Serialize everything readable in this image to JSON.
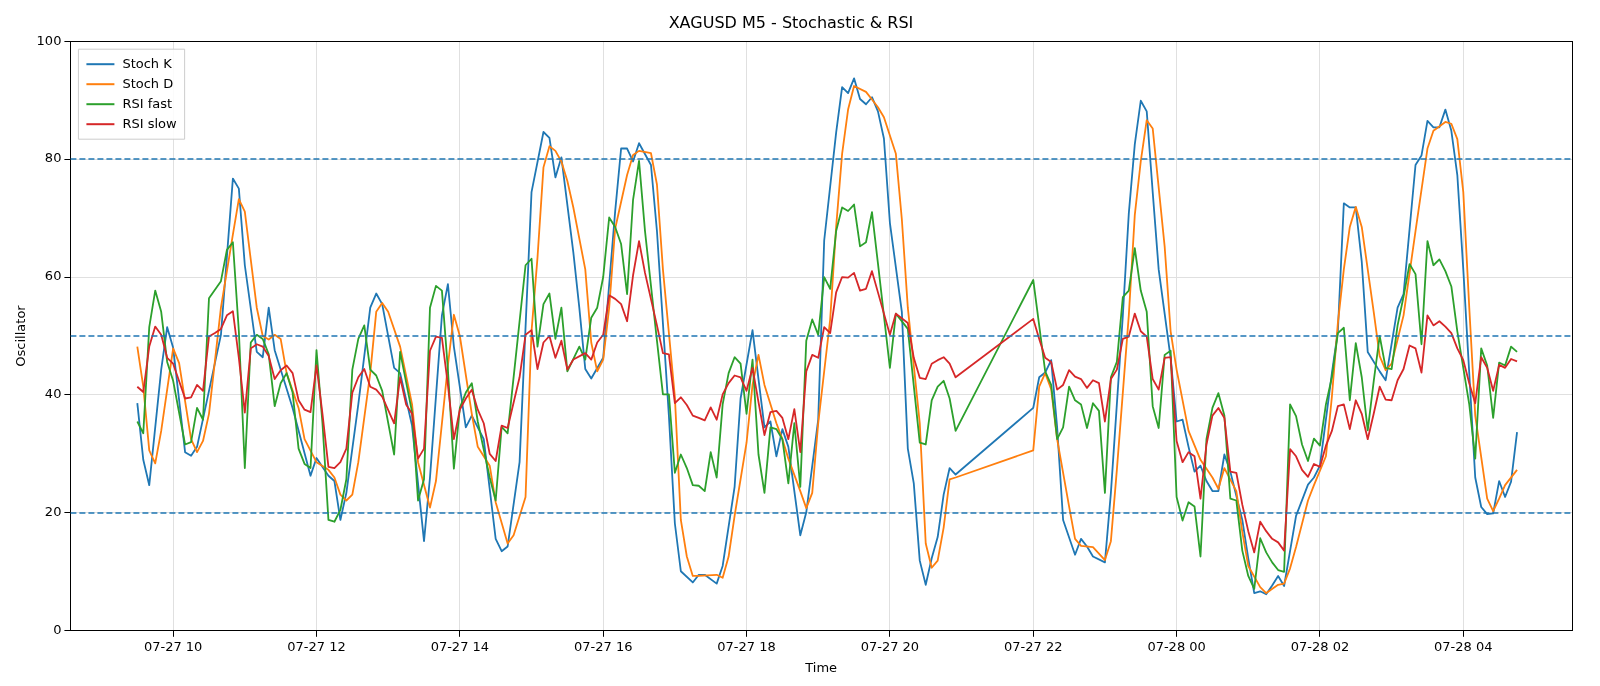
{
  "chart_data": {
    "type": "line",
    "title": "XAGUSD M5 - Stochastic & RSI",
    "xlabel": "Time",
    "ylabel": "Oscillator",
    "xlim": [
      "--07-27T08:34",
      "--07-28T05:31"
    ],
    "xticks": [
      {
        "value": "--07-27T10:00",
        "label": "07-27 10"
      },
      {
        "value": "--07-27T12:00",
        "label": "07-27 12"
      },
      {
        "value": "--07-27T14:00",
        "label": "07-27 14"
      },
      {
        "value": "--07-27T16:00",
        "label": "07-27 16"
      },
      {
        "value": "--07-27T18:00",
        "label": "07-27 18"
      },
      {
        "value": "--07-27T20:00",
        "label": "07-27 20"
      },
      {
        "value": "--07-27T22:00",
        "label": "07-27 22"
      },
      {
        "value": "--07-28T00:00",
        "label": "07-28 00"
      },
      {
        "value": "--07-28T02:00",
        "label": "07-28 02"
      },
      {
        "value": "--07-28T04:00",
        "label": "07-28 04"
      }
    ],
    "ylim": [
      0,
      100
    ],
    "yticks": [
      0,
      20,
      40,
      60,
      80,
      100
    ],
    "grid": true,
    "legend": "top left",
    "line_style": "solid",
    "ref_lines": [
      {
        "axis": "y",
        "value": 80,
        "color": "#1f77b3",
        "line_style": "dashed"
      },
      {
        "axis": "y",
        "value": 50,
        "color": "#1f76b4",
        "line_style": "dashed"
      },
      {
        "axis": "y",
        "value": 20,
        "color": "#1e77b4",
        "line_style": "dashed"
      }
    ],
    "series": [
      {
        "name": "Stoch K",
        "color": "#1f77b4",
        "x": [
          "--07-27T09:30",
          "--07-27T09:35",
          "--07-27T09:40",
          "--07-27T09:50",
          "--07-27T09:55",
          "--07-27T10:00",
          "--07-27T10:10",
          "--07-27T10:15",
          "--07-27T10:20",
          "--07-27T10:40",
          "--07-27T10:50",
          "--07-27T10:55",
          "--07-27T11:00",
          "--07-27T11:10",
          "--07-27T11:15",
          "--07-27T11:20",
          "--07-27T11:25",
          "--07-27T11:40",
          "--07-27T11:55",
          "--07-27T12:00",
          "--07-27T12:10",
          "--07-27T12:15",
          "--07-27T12:20",
          "--07-27T12:25",
          "--07-27T12:35",
          "--07-27T12:45",
          "--07-27T12:50",
          "--07-27T12:55",
          "--07-27T13:05",
          "--07-27T13:10",
          "--07-27T13:20",
          "--07-27T13:30",
          "--07-27T13:35",
          "--07-27T13:45",
          "--07-27T13:50",
          "--07-27T13:55",
          "--07-27T14:05",
          "--07-27T14:10",
          "--07-27T14:20",
          "--07-27T14:30",
          "--07-27T14:35",
          "--07-27T14:40",
          "--07-27T14:50",
          "--07-27T15:00",
          "--07-27T15:10",
          "--07-27T15:15",
          "--07-27T15:20",
          "--07-27T15:25",
          "--07-27T15:35",
          "--07-27T15:40",
          "--07-27T15:45",
          "--07-27T15:50",
          "--07-27T16:00",
          "--07-27T16:10",
          "--07-27T16:15",
          "--07-27T16:20",
          "--07-27T16:25",
          "--07-27T16:30",
          "--07-27T16:40",
          "--07-27T16:45",
          "--07-27T16:55",
          "--07-27T17:00",
          "--07-27T17:05",
          "--07-27T17:15",
          "--07-27T17:20",
          "--07-27T17:25",
          "--07-27T17:35",
          "--07-27T17:40",
          "--07-27T17:50",
          "--07-27T17:55",
          "--07-27T18:05",
          "--07-27T18:10",
          "--07-27T18:15",
          "--07-27T18:20",
          "--07-27T18:25",
          "--07-27T18:30",
          "--07-27T18:35",
          "--07-27T18:45",
          "--07-27T18:50",
          "--07-27T19:00",
          "--07-27T19:05",
          "--07-27T19:15",
          "--07-27T19:20",
          "--07-27T19:25",
          "--07-27T19:30",
          "--07-27T19:35",
          "--07-27T19:40",
          "--07-27T19:45",
          "--07-27T19:50",
          "--07-27T19:55",
          "--07-27T20:00",
          "--07-27T20:10",
          "--07-27T20:15",
          "--07-27T20:20",
          "--07-27T20:25",
          "--07-27T20:30",
          "--07-27T20:35",
          "--07-27T20:40",
          "--07-27T20:45",
          "--07-27T20:50",
          "--07-27T20:55",
          "--07-27T22:00",
          "--07-27T22:05",
          "--07-27T22:10",
          "--07-27T22:15",
          "--07-27T22:20",
          "--07-27T22:25",
          "--07-27T22:35",
          "--07-27T22:40",
          "--07-27T22:45",
          "--07-27T22:50",
          "--07-27T23:00",
          "--07-27T23:05",
          "--07-27T23:15",
          "--07-27T23:20",
          "--07-27T23:25",
          "--07-27T23:30",
          "--07-27T23:35",
          "--07-27T23:40",
          "--07-27T23:45",
          "--07-27T23:55",
          "--07-28T00:00",
          "--07-28T00:05",
          "--07-28T00:10",
          "--07-28T00:15",
          "--07-28T00:20",
          "--07-28T00:25",
          "--07-28T00:30",
          "--07-28T00:35",
          "--07-28T00:40",
          "--07-28T00:45",
          "--07-28T00:55",
          "--07-28T01:00",
          "--07-28T01:05",
          "--07-28T01:10",
          "--07-28T01:15",
          "--07-28T01:20",
          "--07-28T01:25",
          "--07-28T01:30",
          "--07-28T01:40",
          "--07-28T01:50",
          "--07-28T01:55",
          "--07-28T02:00",
          "--07-28T02:10",
          "--07-28T02:15",
          "--07-28T02:20",
          "--07-28T02:25",
          "--07-28T02:30",
          "--07-28T02:35",
          "--07-28T02:40",
          "--07-28T02:50",
          "--07-28T02:55",
          "--07-28T03:05",
          "--07-28T03:10",
          "--07-28T03:20",
          "--07-28T03:25",
          "--07-28T03:30",
          "--07-28T03:35",
          "--07-28T03:40",
          "--07-28T03:45",
          "--07-28T03:50",
          "--07-28T03:55",
          "--07-28T04:00",
          "--07-28T04:10",
          "--07-28T04:15",
          "--07-28T04:20",
          "--07-28T04:25",
          "--07-28T04:30",
          "--07-28T04:35",
          "--07-28T04:40",
          "--07-28T04:45"
        ],
        "values": [
          38.6,
          29,
          24.7,
          44.3,
          51.5,
          48,
          30.3,
          29.7,
          31.2,
          50.2,
          76.7,
          75,
          62,
          47.3,
          46.4,
          54.8,
          47.6,
          37.8,
          26.3,
          29.3,
          26.3,
          25.4,
          18.8,
          23.4,
          38.4,
          54.8,
          57.2,
          55.4,
          44.6,
          43.7,
          34.8,
          15.2,
          26,
          53.5,
          58.8,
          48.2,
          34.5,
          36.5,
          32.5,
          15.6,
          13.5,
          14.3,
          28.6,
          74.4,
          84.6,
          83.6,
          76.9,
          80.3,
          64.2,
          54.8,
          44.4,
          42.8,
          46.3,
          71.1,
          81.8,
          81.8,
          79.6,
          82.7,
          79,
          67.8,
          36.5,
          18.2,
          10.1,
          8.2,
          9.5,
          9.5,
          8,
          11,
          24.4,
          39.4,
          51,
          42.7,
          34.5,
          35.5,
          29.6,
          34.2,
          31.2,
          16.2,
          20.1,
          35.8,
          66.2,
          84.5,
          92.2,
          91.2,
          93.7,
          90.2,
          89.3,
          90.5,
          88.1,
          83.5,
          69.2,
          54.1,
          30.9,
          25,
          11.9,
          7.8,
          12.3,
          15.9,
          23.1,
          27.6,
          26.5,
          37.8,
          43,
          43.8,
          45.9,
          34.5,
          18.8,
          12.9,
          15.6,
          14.3,
          12.6,
          11.6,
          23.4,
          53.5,
          70.8,
          82.5,
          89.9,
          88.1,
          74.4,
          61.3,
          46.3,
          35.5,
          35.8,
          31.2,
          27,
          28,
          25.4,
          23.7,
          23.7,
          29.9,
          27,
          18.8,
          12.3,
          6.4,
          6.7,
          6.2,
          7.7,
          9.3,
          7.6,
          19.5,
          24.8,
          26,
          28,
          43.7,
          50.8,
          72.5,
          71.8,
          71.8,
          62.6,
          47.3,
          44,
          42.5,
          54.8,
          57.1,
          79,
          80.6,
          86.5,
          85.4,
          85.4,
          88.4,
          84.8,
          77.3,
          61.3,
          26,
          21,
          19.8,
          19.9,
          25.4,
          22.7,
          25.3,
          33.7
        ]
      },
      {
        "name": "Stoch D",
        "color": "#ff7f0e",
        "x": [
          "--07-27T09:30",
          "--07-27T09:35",
          "--07-27T09:40",
          "--07-27T09:45",
          "--07-27T09:50",
          "--07-27T10:00",
          "--07-27T10:05",
          "--07-27T10:15",
          "--07-27T10:20",
          "--07-27T10:25",
          "--07-27T10:30",
          "--07-27T10:40",
          "--07-27T10:50",
          "--07-27T10:55",
          "--07-27T11:00",
          "--07-27T11:05",
          "--07-27T11:10",
          "--07-27T11:15",
          "--07-27T11:20",
          "--07-27T11:25",
          "--07-27T11:30",
          "--07-27T11:35",
          "--07-27T11:45",
          "--07-27T11:50",
          "--07-27T12:00",
          "--07-27T12:10",
          "--07-27T12:15",
          "--07-27T12:20",
          "--07-27T12:25",
          "--07-27T12:30",
          "--07-27T12:35",
          "--07-27T12:45",
          "--07-27T12:50",
          "--07-27T12:55",
          "--07-27T13:00",
          "--07-27T13:10",
          "--07-27T13:20",
          "--07-27T13:25",
          "--07-27T13:35",
          "--07-27T13:40",
          "--07-27T13:50",
          "--07-27T13:55",
          "--07-27T14:00",
          "--07-27T14:10",
          "--07-27T14:15",
          "--07-27T14:25",
          "--07-27T14:30",
          "--07-27T14:40",
          "--07-27T14:45",
          "--07-27T14:55",
          "--07-27T15:00",
          "--07-27T15:05",
          "--07-27T15:10",
          "--07-27T15:15",
          "--07-27T15:20",
          "--07-27T15:25",
          "--07-27T15:30",
          "--07-27T15:35",
          "--07-27T15:45",
          "--07-27T15:50",
          "--07-27T15:55",
          "--07-27T16:00",
          "--07-27T16:05",
          "--07-27T16:10",
          "--07-27T16:20",
          "--07-27T16:25",
          "--07-27T16:30",
          "--07-27T16:40",
          "--07-27T16:45",
          "--07-27T16:50",
          "--07-27T17:00",
          "--07-27T17:05",
          "--07-27T17:10",
          "--07-27T17:15",
          "--07-27T17:20",
          "--07-27T17:35",
          "--07-27T17:40",
          "--07-27T17:45",
          "--07-27T17:50",
          "--07-27T18:00",
          "--07-27T18:05",
          "--07-27T18:10",
          "--07-27T18:15",
          "--07-27T18:25",
          "--07-27T18:30",
          "--07-27T18:35",
          "--07-27T18:45",
          "--07-27T18:50",
          "--07-27T18:55",
          "--07-27T19:00",
          "--07-27T19:10",
          "--07-27T19:15",
          "--07-27T19:20",
          "--07-27T19:25",
          "--07-27T19:30",
          "--07-27T19:40",
          "--07-27T19:45",
          "--07-27T19:50",
          "--07-27T19:55",
          "--07-27T20:05",
          "--07-27T20:10",
          "--07-27T20:15",
          "--07-27T20:25",
          "--07-27T20:30",
          "--07-27T20:35",
          "--07-27T20:40",
          "--07-27T20:45",
          "--07-27T20:50",
          "--07-27T20:55",
          "--07-27T22:00",
          "--07-27T22:05",
          "--07-27T22:10",
          "--07-27T22:15",
          "--07-27T22:20",
          "--07-27T22:30",
          "--07-27T22:35",
          "--07-27T22:40",
          "--07-27T22:50",
          "--07-27T23:00",
          "--07-27T23:05",
          "--07-27T23:10",
          "--07-27T23:20",
          "--07-27T23:25",
          "--07-27T23:30",
          "--07-27T23:35",
          "--07-27T23:40",
          "--07-27T23:50",
          "--07-27T23:55",
          "--07-28T00:00",
          "--07-28T00:10",
          "--07-28T00:20",
          "--07-28T00:30",
          "--07-28T00:35",
          "--07-28T00:40",
          "--07-28T00:50",
          "--07-28T00:55",
          "--07-28T01:00",
          "--07-28T01:10",
          "--07-28T01:15",
          "--07-28T01:25",
          "--07-28T01:30",
          "--07-28T01:35",
          "--07-28T01:40",
          "--07-28T01:50",
          "--07-28T01:55",
          "--07-28T02:05",
          "--07-28T02:10",
          "--07-28T02:15",
          "--07-28T02:20",
          "--07-28T02:25",
          "--07-28T02:30",
          "--07-28T02:35",
          "--07-28T02:45",
          "--07-28T02:50",
          "--07-28T02:55",
          "--07-28T03:00",
          "--07-28T03:10",
          "--07-28T03:20",
          "--07-28T03:30",
          "--07-28T03:35",
          "--07-28T03:45",
          "--07-28T03:50",
          "--07-28T03:55",
          "--07-28T04:00",
          "--07-28T04:05",
          "--07-28T04:10",
          "--07-28T04:20",
          "--07-28T04:25",
          "--07-28T04:30",
          "--07-28T04:35",
          "--07-28T04:45"
        ],
        "values": [
          48.2,
          41.4,
          30.6,
          28.4,
          33.9,
          47.9,
          45.4,
          32.5,
          30.3,
          32.2,
          36.8,
          54.8,
          67.2,
          73.2,
          71.1,
          62.9,
          54.8,
          50,
          49.4,
          50.2,
          49.5,
          43.7,
          37.8,
          32.5,
          28.6,
          27.3,
          26,
          23.1,
          22.1,
          23.1,
          28.6,
          43.7,
          54.1,
          55.6,
          54.1,
          48.2,
          38.4,
          28.6,
          20.9,
          25.4,
          45,
          53.6,
          50,
          36.8,
          31.2,
          28,
          21.8,
          14.8,
          16.2,
          22.7,
          50.8,
          63.3,
          78.6,
          82.2,
          81.4,
          79.6,
          76.3,
          71.8,
          61.3,
          48.9,
          44,
          46,
          54.8,
          68.2,
          77.3,
          80.7,
          81.4,
          81,
          75.7,
          61.3,
          39.7,
          18.8,
          12.6,
          9.3,
          9.3,
          9.5,
          9,
          12.6,
          19.5,
          31.9,
          41.7,
          46.8,
          41.7,
          35.2,
          32.5,
          29.2,
          23.7,
          20.8,
          23.4,
          35.2,
          52.8,
          68.5,
          80.9,
          88.4,
          92.4,
          91.4,
          90.1,
          88.8,
          87.1,
          80.9,
          69.8,
          54.8,
          35.2,
          14.8,
          10.7,
          11.9,
          17.5,
          25.7,
          26,
          30.6,
          41.4,
          43.7,
          41,
          32.5,
          21.1,
          15.6,
          14.4,
          14.2,
          12,
          15.2,
          27.3,
          53.5,
          70.5,
          79.6,
          86.6,
          85.2,
          65.2,
          50.8,
          44.3,
          33.9,
          29,
          26,
          24.1,
          27.6,
          23.7,
          16.8,
          11,
          7.4,
          6.4,
          7.8,
          8,
          10.6,
          14.2,
          22.1,
          24.7,
          29.6,
          39.7,
          52.2,
          61.3,
          68.5,
          71.9,
          68.5,
          54.1,
          46.6,
          44.2,
          45.3,
          53.5,
          67.8,
          81.8,
          84.8,
          86.3,
          86,
          83.4,
          74.4,
          54.8,
          36.5,
          22.4,
          20.3,
          22.4,
          24.7,
          27.3
        ]
      },
      {
        "name": "RSI fast",
        "color": "#2ca02c",
        "x": [
          "--07-27T09:30",
          "--07-27T09:35",
          "--07-27T09:40",
          "--07-27T09:45",
          "--07-27T09:50",
          "--07-27T09:55",
          "--07-27T10:00",
          "--07-27T10:10",
          "--07-27T10:15",
          "--07-27T10:20",
          "--07-27T10:25",
          "--07-27T10:30",
          "--07-27T10:40",
          "--07-27T10:45",
          "--07-27T10:50",
          "--07-27T10:55",
          "--07-27T11:00",
          "--07-27T11:05",
          "--07-27T11:10",
          "--07-27T11:15",
          "--07-27T11:20",
          "--07-27T11:25",
          "--07-27T11:30",
          "--07-27T11:35",
          "--07-27T11:40",
          "--07-27T11:45",
          "--07-27T11:50",
          "--07-27T11:55",
          "--07-27T12:00",
          "--07-27T12:05",
          "--07-27T12:10",
          "--07-27T12:15",
          "--07-27T12:20",
          "--07-27T12:25",
          "--07-27T12:30",
          "--07-27T12:35",
          "--07-27T12:40",
          "--07-27T12:45",
          "--07-27T12:50",
          "--07-27T12:55",
          "--07-27T13:05",
          "--07-27T13:10",
          "--07-27T13:20",
          "--07-27T13:25",
          "--07-27T13:30",
          "--07-27T13:35",
          "--07-27T13:40",
          "--07-27T13:45",
          "--07-27T13:50",
          "--07-27T13:55",
          "--07-27T14:00",
          "--07-27T14:05",
          "--07-27T14:10",
          "--07-27T14:15",
          "--07-27T14:25",
          "--07-27T14:30",
          "--07-27T14:35",
          "--07-27T14:40",
          "--07-27T14:55",
          "--07-27T15:00",
          "--07-27T15:05",
          "--07-27T15:10",
          "--07-27T15:15",
          "--07-27T15:20",
          "--07-27T15:25",
          "--07-27T15:30",
          "--07-27T15:40",
          "--07-27T15:45",
          "--07-27T15:50",
          "--07-27T15:55",
          "--07-27T16:00",
          "--07-27T16:05",
          "--07-27T16:10",
          "--07-27T16:15",
          "--07-27T16:20",
          "--07-27T16:25",
          "--07-27T16:30",
          "--07-27T16:35",
          "--07-27T16:45",
          "--07-27T16:50",
          "--07-27T16:55",
          "--07-27T17:00",
          "--07-27T17:05",
          "--07-27T17:10",
          "--07-27T17:15",
          "--07-27T17:20",
          "--07-27T17:25",
          "--07-27T17:30",
          "--07-27T17:35",
          "--07-27T17:40",
          "--07-27T17:45",
          "--07-27T17:50",
          "--07-27T17:55",
          "--07-27T18:00",
          "--07-27T18:05",
          "--07-27T18:10",
          "--07-27T18:15",
          "--07-27T18:20",
          "--07-27T18:25",
          "--07-27T18:30",
          "--07-27T18:35",
          "--07-27T18:40",
          "--07-27T18:45",
          "--07-27T18:50",
          "--07-27T18:55",
          "--07-27T19:00",
          "--07-27T19:05",
          "--07-27T19:10",
          "--07-27T19:15",
          "--07-27T19:20",
          "--07-27T19:25",
          "--07-27T19:30",
          "--07-27T19:35",
          "--07-27T19:40",
          "--07-27T19:45",
          "--07-27T19:50",
          "--07-27T20:00",
          "--07-27T20:05",
          "--07-27T20:15",
          "--07-27T20:25",
          "--07-27T20:30",
          "--07-27T20:35",
          "--07-27T20:40",
          "--07-27T20:45",
          "--07-27T20:50",
          "--07-27T20:55",
          "--07-27T22:00",
          "--07-27T22:10",
          "--07-27T22:15",
          "--07-27T22:20",
          "--07-27T22:25",
          "--07-27T22:30",
          "--07-27T22:35",
          "--07-27T22:40",
          "--07-27T22:45",
          "--07-27T22:50",
          "--07-27T22:55",
          "--07-27T23:00",
          "--07-27T23:05",
          "--07-27T23:10",
          "--07-27T23:15",
          "--07-27T23:20",
          "--07-27T23:25",
          "--07-27T23:30",
          "--07-27T23:35",
          "--07-27T23:40",
          "--07-27T23:45",
          "--07-27T23:50",
          "--07-27T23:55",
          "--07-28T00:00",
          "--07-28T00:05",
          "--07-28T00:10",
          "--07-28T00:15",
          "--07-28T00:20",
          "--07-28T00:25",
          "--07-28T00:30",
          "--07-28T00:35",
          "--07-28T00:40",
          "--07-28T00:45",
          "--07-28T00:50",
          "--07-28T00:55",
          "--07-28T01:00",
          "--07-28T01:05",
          "--07-28T01:10",
          "--07-28T01:15",
          "--07-28T01:20",
          "--07-28T01:25",
          "--07-28T01:30",
          "--07-28T01:35",
          "--07-28T01:40",
          "--07-28T01:45",
          "--07-28T01:50",
          "--07-28T01:55",
          "--07-28T02:00",
          "--07-28T02:05",
          "--07-28T02:10",
          "--07-28T02:15",
          "--07-28T02:20",
          "--07-28T02:25",
          "--07-28T02:30",
          "--07-28T02:35",
          "--07-28T02:40",
          "--07-28T02:45",
          "--07-28T02:50",
          "--07-28T02:55",
          "--07-28T03:00",
          "--07-28T03:05",
          "--07-28T03:10",
          "--07-28T03:15",
          "--07-28T03:20",
          "--07-28T03:25",
          "--07-28T03:30",
          "--07-28T03:35",
          "--07-28T03:40",
          "--07-28T03:45",
          "--07-28T03:50",
          "--07-28T03:55",
          "--07-28T04:05",
          "--07-28T04:10",
          "--07-28T04:15",
          "--07-28T04:20",
          "--07-28T04:25",
          "--07-28T04:30",
          "--07-28T04:35",
          "--07-28T04:40",
          "--07-28T04:45"
        ],
        "values": [
          35.5,
          33.5,
          51.5,
          57.7,
          54.1,
          45.6,
          42.4,
          31.6,
          32,
          37.8,
          35.8,
          56.4,
          59.3,
          64.6,
          65.9,
          50.8,
          27.6,
          48.9,
          50.2,
          49.5,
          46.9,
          38.1,
          42,
          43.7,
          40.4,
          30.9,
          28.3,
          27.6,
          47.6,
          35.2,
          18.8,
          18.5,
          20.5,
          25.7,
          44.3,
          49.5,
          51.8,
          44.3,
          43.3,
          40.7,
          29.9,
          47.3,
          37.1,
          22.1,
          25.7,
          54.8,
          58.5,
          57.7,
          44.3,
          27.5,
          37.8,
          40.4,
          42,
          35.5,
          26,
          22.1,
          34.6,
          33.5,
          62,
          63.1,
          48.2,
          55.4,
          57.2,
          49.5,
          54.8,
          44,
          48.2,
          46,
          53.1,
          54.8,
          60,
          70.1,
          68.5,
          65.6,
          57.1,
          73.1,
          79.7,
          67.8,
          49.2,
          40.1,
          40.1,
          26.8,
          29.9,
          27.6,
          24.7,
          24.6,
          23.7,
          30.3,
          26,
          38.4,
          43.7,
          46.4,
          45.3,
          36.8,
          46,
          29.9,
          23.4,
          34.5,
          34.2,
          32.5,
          25,
          35.2,
          24.4,
          49.2,
          52.8,
          50.2,
          60,
          58,
          67.8,
          71.8,
          71.2,
          72.3,
          65.2,
          65.9,
          71,
          62.3,
          44.6,
          53.8,
          51.2,
          31.9,
          31.6,
          39.1,
          41.4,
          42.4,
          39.4,
          33.9,
          59.5,
          44,
          41.7,
          32.5,
          34.5,
          41.4,
          39.1,
          38.4,
          34.4,
          38.6,
          37.3,
          23.4,
          43,
          45.6,
          56.6,
          57.7,
          64.9,
          57.7,
          54.1,
          38.1,
          34.4,
          46.8,
          47.5,
          22.7,
          18.7,
          21.8,
          21.1,
          12.6,
          32.5,
          37.8,
          40.3,
          36.5,
          22.4,
          22.1,
          13.6,
          9.3,
          7.1,
          15.7,
          13.3,
          11.6,
          10.3,
          10,
          38.4,
          36.4,
          31.6,
          28.8,
          32.6,
          31.4,
          38.4,
          43,
          50.5,
          51.4,
          39.1,
          48.8,
          43,
          34,
          42.3,
          50,
          44.6,
          44.4,
          51.8,
          56.7,
          62.2,
          60.5,
          48.6,
          66.1,
          62,
          63,
          61,
          58.4,
          50.8,
          38.4,
          29.2,
          47.9,
          45,
          36.1,
          45.5,
          45,
          48.2,
          47.3
        ]
      },
      {
        "name": "RSI slow",
        "color": "#d62728",
        "x": [
          "--07-27T09:30",
          "--07-27T09:35",
          "--07-27T09:40",
          "--07-27T09:45",
          "--07-27T09:50",
          "--07-27T09:55",
          "--07-27T10:00",
          "--07-27T10:10",
          "--07-27T10:15",
          "--07-27T10:20",
          "--07-27T10:25",
          "--07-27T10:30",
          "--07-27T10:35",
          "--07-27T10:40",
          "--07-27T10:45",
          "--07-27T10:50",
          "--07-27T10:55",
          "--07-27T11:00",
          "--07-27T11:05",
          "--07-27T11:10",
          "--07-27T11:15",
          "--07-27T11:20",
          "--07-27T11:25",
          "--07-27T11:30",
          "--07-27T11:35",
          "--07-27T11:40",
          "--07-27T11:45",
          "--07-27T11:50",
          "--07-27T11:55",
          "--07-27T12:00",
          "--07-27T12:05",
          "--07-27T12:10",
          "--07-27T12:15",
          "--07-27T12:20",
          "--07-27T12:25",
          "--07-27T12:30",
          "--07-27T12:35",
          "--07-27T12:40",
          "--07-27T12:45",
          "--07-27T12:50",
          "--07-27T12:55",
          "--07-27T13:05",
          "--07-27T13:10",
          "--07-27T13:15",
          "--07-27T13:20",
          "--07-27T13:25",
          "--07-27T13:30",
          "--07-27T13:35",
          "--07-27T13:40",
          "--07-27T13:45",
          "--07-27T13:50",
          "--07-27T13:55",
          "--07-27T14:00",
          "--07-27T14:05",
          "--07-27T14:10",
          "--07-27T14:15",
          "--07-27T14:20",
          "--07-27T14:25",
          "--07-27T14:30",
          "--07-27T14:35",
          "--07-27T14:40",
          "--07-27T14:50",
          "--07-27T14:55",
          "--07-27T15:00",
          "--07-27T15:05",
          "--07-27T15:10",
          "--07-27T15:15",
          "--07-27T15:20",
          "--07-27T15:25",
          "--07-27T15:30",
          "--07-27T15:35",
          "--07-27T15:45",
          "--07-27T15:50",
          "--07-27T15:55",
          "--07-27T16:00",
          "--07-27T16:05",
          "--07-27T16:10",
          "--07-27T16:15",
          "--07-27T16:20",
          "--07-27T16:25",
          "--07-27T16:30",
          "--07-27T16:35",
          "--07-27T16:45",
          "--07-27T16:50",
          "--07-27T16:55",
          "--07-27T17:00",
          "--07-27T17:05",
          "--07-27T17:10",
          "--07-27T17:15",
          "--07-27T17:20",
          "--07-27T17:25",
          "--07-27T17:30",
          "--07-27T17:35",
          "--07-27T17:40",
          "--07-27T17:45",
          "--07-27T17:50",
          "--07-27T17:55",
          "--07-27T18:00",
          "--07-27T18:05",
          "--07-27T18:10",
          "--07-27T18:15",
          "--07-27T18:20",
          "--07-27T18:25",
          "--07-27T18:30",
          "--07-27T18:35",
          "--07-27T18:40",
          "--07-27T18:45",
          "--07-27T18:50",
          "--07-27T18:55",
          "--07-27T19:00",
          "--07-27T19:05",
          "--07-27T19:10",
          "--07-27T19:15",
          "--07-27T19:20",
          "--07-27T19:25",
          "--07-27T19:30",
          "--07-27T19:35",
          "--07-27T19:40",
          "--07-27T19:45",
          "--07-27T19:50",
          "--07-27T20:00",
          "--07-27T20:05",
          "--07-27T20:15",
          "--07-27T20:20",
          "--07-27T20:25",
          "--07-27T20:30",
          "--07-27T20:35",
          "--07-27T20:40",
          "--07-27T20:45",
          "--07-27T20:50",
          "--07-27T20:55",
          "--07-27T22:00",
          "--07-27T22:05",
          "--07-27T22:10",
          "--07-27T22:15",
          "--07-27T22:20",
          "--07-27T22:25",
          "--07-27T22:30",
          "--07-27T22:35",
          "--07-27T22:40",
          "--07-27T22:45",
          "--07-27T22:50",
          "--07-27T22:55",
          "--07-27T23:00",
          "--07-27T23:05",
          "--07-27T23:10",
          "--07-27T23:15",
          "--07-27T23:20",
          "--07-27T23:25",
          "--07-27T23:30",
          "--07-27T23:35",
          "--07-27T23:40",
          "--07-27T23:45",
          "--07-27T23:50",
          "--07-27T23:55",
          "--07-28T00:00",
          "--07-28T00:05",
          "--07-28T00:10",
          "--07-28T00:15",
          "--07-28T00:20",
          "--07-28T00:25",
          "--07-28T00:30",
          "--07-28T00:35",
          "--07-28T00:40",
          "--07-28T00:45",
          "--07-28T00:50",
          "--07-28T00:55",
          "--07-28T01:00",
          "--07-28T01:05",
          "--07-28T01:10",
          "--07-28T01:15",
          "--07-28T01:20",
          "--07-28T01:25",
          "--07-28T01:30",
          "--07-28T01:35",
          "--07-28T01:40",
          "--07-28T01:45",
          "--07-28T01:50",
          "--07-28T01:55",
          "--07-28T02:00",
          "--07-28T02:05",
          "--07-28T02:10",
          "--07-28T02:15",
          "--07-28T02:20",
          "--07-28T02:25",
          "--07-28T02:30",
          "--07-28T02:35",
          "--07-28T02:40",
          "--07-28T02:45",
          "--07-28T02:50",
          "--07-28T02:55",
          "--07-28T03:00",
          "--07-28T03:05",
          "--07-28T03:10",
          "--07-28T03:15",
          "--07-28T03:20",
          "--07-28T03:25",
          "--07-28T03:30",
          "--07-28T03:35",
          "--07-28T03:40",
          "--07-28T03:45",
          "--07-28T03:50",
          "--07-28T03:55",
          "--07-28T04:00",
          "--07-28T04:05",
          "--07-28T04:10",
          "--07-28T04:15",
          "--07-28T04:20",
          "--07-28T04:25",
          "--07-28T04:30",
          "--07-28T04:35",
          "--07-28T04:40",
          "--07-28T04:45"
        ],
        "values": [
          41.4,
          40.5,
          48.2,
          51.6,
          50.2,
          46.3,
          45.3,
          39.4,
          39.6,
          41.7,
          40.7,
          49.9,
          50.5,
          51.2,
          53.5,
          54.2,
          46.3,
          37,
          47.9,
          48.6,
          48.2,
          46.6,
          42.7,
          44.2,
          45,
          43.7,
          39.1,
          37.5,
          37.1,
          45,
          36.8,
          27.8,
          27.6,
          28.6,
          30.9,
          40.4,
          43,
          44.4,
          41.4,
          40.9,
          39.7,
          35.2,
          43,
          38.4,
          36.8,
          29.2,
          30.9,
          47.5,
          49.9,
          49.7,
          41.7,
          32.5,
          37.5,
          39.4,
          40.9,
          37.5,
          35.2,
          30,
          28.8,
          34.8,
          34.4,
          43,
          50.2,
          51,
          44.4,
          48.9,
          50,
          46.3,
          49.2,
          44.3,
          46,
          47.1,
          46,
          48.9,
          50.2,
          56.9,
          56.3,
          55.4,
          52.5,
          60.3,
          66.1,
          60.7,
          51.8,
          47.1,
          46.9,
          38.6,
          39.6,
          38.3,
          36.5,
          36.1,
          35.7,
          37.9,
          35.8,
          40.1,
          42,
          43.3,
          43,
          40.7,
          44.6,
          38.8,
          33.2,
          37.1,
          37.3,
          36.1,
          32.5,
          37.6,
          30.3,
          44,
          46.8,
          46.3,
          51.5,
          50.5,
          57.4,
          60,
          59.9,
          60.7,
          57.7,
          58,
          61,
          57.4,
          50.2,
          53.8,
          52.2,
          46.3,
          42.9,
          42.7,
          45.3,
          45.9,
          46.4,
          45.3,
          43,
          52.9,
          49.5,
          46.3,
          45.6,
          40.9,
          41.7,
          44.2,
          43.1,
          42.7,
          41.2,
          42.5,
          42,
          35.5,
          42.7,
          44.3,
          49.5,
          49.9,
          53.8,
          50.8,
          49.9,
          42.7,
          40.9,
          46.3,
          46.4,
          32.2,
          28.6,
          30.3,
          29.6,
          22.4,
          31.6,
          36.5,
          37.8,
          36.1,
          27,
          26.8,
          21.4,
          16.9,
          13.3,
          18.5,
          16.9,
          15.6,
          15,
          13.6,
          30.8,
          29.6,
          27.3,
          26.1,
          28.3,
          27.8,
          31.4,
          33.9,
          38.1,
          38.4,
          34.2,
          39.1,
          36.8,
          32.5,
          36.8,
          41.4,
          39.2,
          39.1,
          42.5,
          44.4,
          48.4,
          47.9,
          43.8,
          53.5,
          51.8,
          52.5,
          51.6,
          50.5,
          47.9,
          45.9,
          42,
          38.6,
          46.4,
          44.6,
          40.7,
          45.1,
          44.6,
          46.1,
          45.7
        ]
      }
    ]
  }
}
